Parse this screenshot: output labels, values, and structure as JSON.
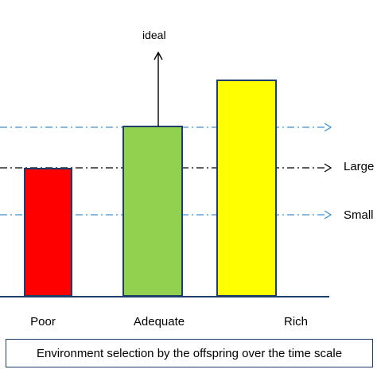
{
  "diagram": {
    "categories": [
      {
        "label": "Poor",
        "color": "#ff0000"
      },
      {
        "label": "Adequate",
        "color": "#92d050"
      },
      {
        "label": "Rich",
        "color": "#ffff00"
      }
    ],
    "ideal_label": "ideal",
    "reference_lines": [
      {
        "label": "",
        "color": "#3d8fd6"
      },
      {
        "label": "Large",
        "color": "#000000"
      },
      {
        "label": "Small",
        "color": "#3d8fd6"
      }
    ],
    "caption": "Environment selection  by the offspring over the time scale",
    "bar_outline_color": "#1f3d6b"
  }
}
